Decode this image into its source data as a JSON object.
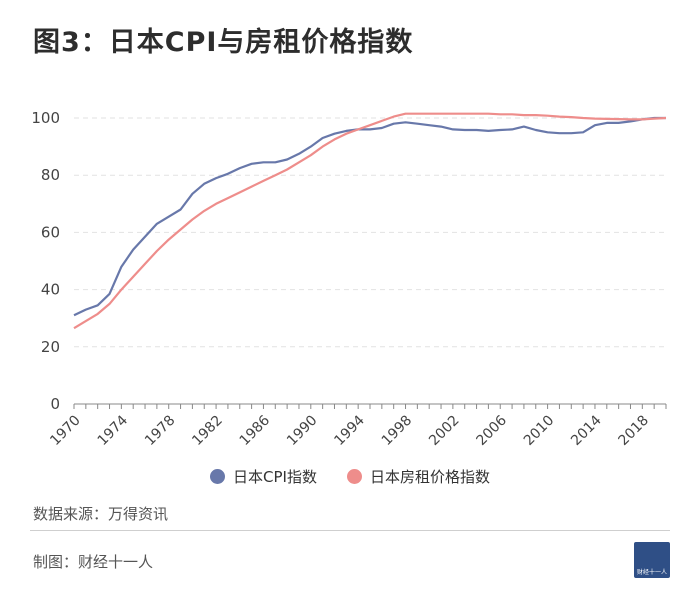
{
  "title": "图3：日本CPI与房租价格指数",
  "source": "数据来源：万得资讯",
  "credit": "制图：财经十一人",
  "logo_text": "财经十一人",
  "colors": {
    "cpi": "#6878aa",
    "rent": "#ee8d8b",
    "grid": "#e2e2e2",
    "axis": "#888888"
  },
  "chart_data": {
    "type": "line",
    "title": "图3：日本CPI与房租价格指数",
    "xlabel": "",
    "ylabel": "",
    "xlim": [
      1970,
      2020
    ],
    "ylim": [
      0,
      100
    ],
    "yticks": [
      0,
      20,
      40,
      60,
      80,
      100
    ],
    "xticks": [
      1970,
      1974,
      1978,
      1982,
      1986,
      1990,
      1994,
      1998,
      2002,
      2006,
      2010,
      2014,
      2018
    ],
    "grid": "horizontal-dashed",
    "legend_position": "bottom",
    "x": [
      1970,
      1971,
      1972,
      1973,
      1974,
      1975,
      1976,
      1977,
      1978,
      1979,
      1980,
      1981,
      1982,
      1983,
      1984,
      1985,
      1986,
      1987,
      1988,
      1989,
      1990,
      1991,
      1992,
      1993,
      1994,
      1995,
      1996,
      1997,
      1998,
      1999,
      2000,
      2001,
      2002,
      2003,
      2004,
      2005,
      2006,
      2007,
      2008,
      2009,
      2010,
      2011,
      2012,
      2013,
      2014,
      2015,
      2016,
      2017,
      2018,
      2019,
      2020
    ],
    "series": [
      {
        "name": "日本CPI指数",
        "color": "#6878aa",
        "values": [
          31,
          33,
          34.5,
          38.5,
          48,
          54,
          58.5,
          63,
          65.5,
          68,
          73.5,
          77,
          79,
          80.5,
          82.5,
          84,
          84.5,
          84.5,
          85.5,
          87.5,
          90,
          93,
          94.5,
          95.5,
          96,
          96,
          96.5,
          98,
          98.5,
          98,
          97.5,
          97,
          96,
          95.8,
          95.8,
          95.5,
          95.8,
          96,
          97,
          95.8,
          95,
          94.7,
          94.7,
          95,
          97.5,
          98.3,
          98.3,
          98.8,
          99.5,
          100,
          100
        ]
      },
      {
        "name": "日本房租价格指数",
        "color": "#ee8d8b",
        "values": [
          26.5,
          29,
          31.5,
          35,
          40,
          44.5,
          49,
          53.5,
          57.5,
          61,
          64.5,
          67.5,
          70,
          72,
          74,
          76,
          78,
          80,
          82,
          84.5,
          87,
          90,
          92.5,
          94.5,
          96,
          97.5,
          99,
          100.5,
          101.5,
          101.5,
          101.5,
          101.5,
          101.5,
          101.5,
          101.5,
          101.5,
          101.3,
          101.3,
          101,
          101,
          100.8,
          100.5,
          100.3,
          100,
          99.8,
          99.7,
          99.6,
          99.5,
          99.5,
          99.8,
          100
        ]
      }
    ]
  }
}
